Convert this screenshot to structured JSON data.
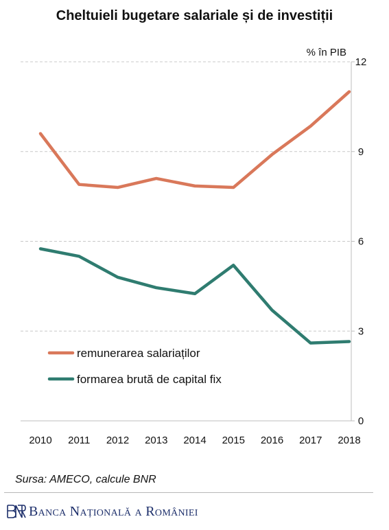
{
  "chart_data": {
    "type": "line",
    "title": "Cheltuieli bugetare salariale și de investiții",
    "unit": "% în PIB",
    "x": [
      "2010",
      "2011",
      "2012",
      "2013",
      "2014",
      "2015",
      "2016",
      "2017",
      "2018"
    ],
    "ylim": [
      0,
      12
    ],
    "yticks": [
      "0",
      "3",
      "6",
      "9",
      "12"
    ],
    "grid": "horizontal dashed",
    "legend_position": "lower-left",
    "series": [
      {
        "name": "remunerarea salariaților",
        "color": "#d9785a",
        "values": [
          9.6,
          7.9,
          7.8,
          8.1,
          7.85,
          7.8,
          8.9,
          9.85,
          11.0
        ]
      },
      {
        "name": "formarea brută de capital fix",
        "color": "#2f7c70",
        "values": [
          5.75,
          5.5,
          4.8,
          4.45,
          4.25,
          5.2,
          3.7,
          2.6,
          2.65
        ]
      }
    ]
  },
  "source": "Sursa: AMECO, calcule BNR",
  "footer": {
    "brand": "Banca Națională a României",
    "logo": "bnr-monogram"
  }
}
